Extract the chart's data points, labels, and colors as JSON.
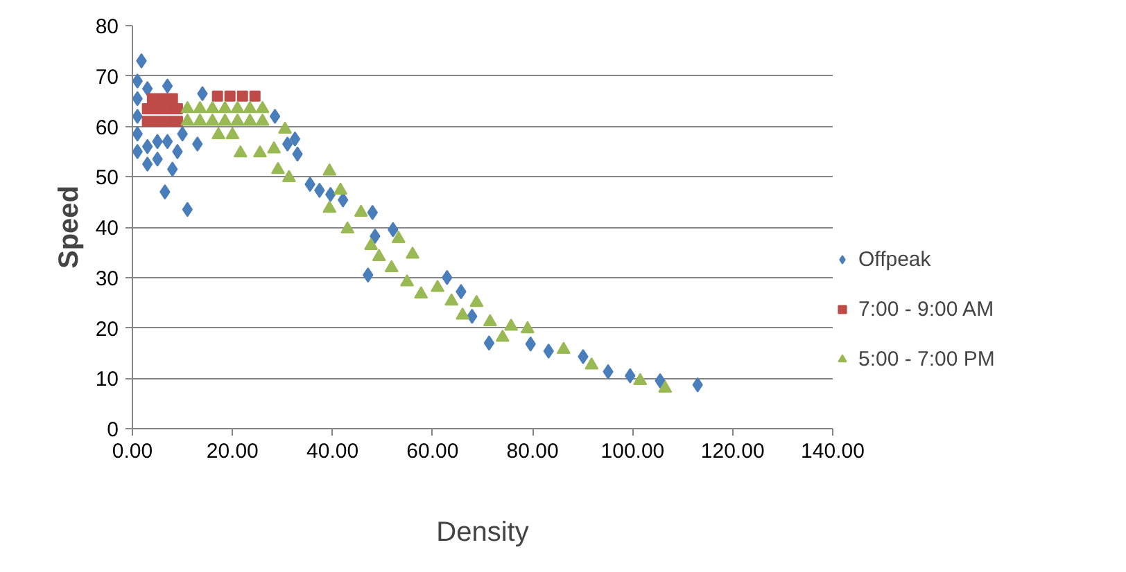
{
  "chart_data": {
    "type": "scatter",
    "xlabel": "Density",
    "ylabel": "Speed",
    "xlim": [
      0,
      140
    ],
    "ylim": [
      0,
      80
    ],
    "xticks": [
      {
        "value": 0,
        "label": "0.00"
      },
      {
        "value": 20,
        "label": "20.00"
      },
      {
        "value": 40,
        "label": "40.00"
      },
      {
        "value": 60,
        "label": "60.00"
      },
      {
        "value": 80,
        "label": "80.00"
      },
      {
        "value": 100,
        "label": "100.00"
      },
      {
        "value": 120,
        "label": "120.00"
      },
      {
        "value": 140,
        "label": "140.00"
      }
    ],
    "yticks": [
      0,
      10,
      20,
      30,
      40,
      50,
      60,
      70,
      80
    ],
    "grid": "y",
    "legend": "right",
    "series": [
      {
        "name": "Offpeak",
        "color": "#4a7ebb",
        "marker": "diamond",
        "x": [
          1.8,
          1,
          1,
          1,
          1,
          1,
          3,
          3,
          3,
          5,
          5,
          7,
          7,
          9,
          8,
          6.5,
          11,
          10,
          13,
          14,
          28.5,
          31,
          33,
          32.5,
          35.5,
          37.4,
          39.6,
          42.1,
          48,
          52.1,
          48.5,
          47.1,
          62.9,
          65.7,
          71.3,
          67.9,
          79.6,
          83.2,
          90.1,
          95.1,
          99.5,
          105.5,
          113
        ],
        "values": [
          73,
          69,
          65.5,
          62,
          58.5,
          55,
          67.5,
          56,
          52.5,
          57,
          53.5,
          68,
          57,
          55,
          51.5,
          47,
          43.5,
          58.5,
          56.5,
          66.5,
          62,
          56.5,
          54.5,
          57.5,
          48.5,
          47.3,
          46.5,
          45.4,
          42.9,
          39.5,
          38.2,
          30.5,
          30,
          27.2,
          17,
          22.3,
          16.8,
          15.4,
          14.3,
          11.3,
          10.5,
          9.5,
          8.7
        ]
      },
      {
        "name": "7:00 - 9:00 AM",
        "color": "#be4b48",
        "marker": "square",
        "x": [
          3,
          5,
          7,
          9,
          3,
          5,
          7,
          9,
          4,
          6,
          8,
          17,
          19.5,
          22,
          24.5
        ],
        "values": [
          61,
          61,
          61,
          61,
          63.5,
          63.5,
          63.5,
          63.5,
          65.5,
          65.5,
          65.5,
          66,
          66,
          66,
          66
        ]
      },
      {
        "name": "5:00 - 7:00 PM",
        "color": "#98b954",
        "marker": "triangle",
        "x": [
          11,
          13.5,
          16,
          18.5,
          21,
          23.5,
          26,
          11,
          13.5,
          16,
          18.5,
          21,
          23.5,
          26,
          17.2,
          20,
          21.6,
          25.5,
          28.3,
          30.5,
          29.1,
          31.3,
          39.4,
          41.6,
          39.4,
          43,
          45.7,
          47.7,
          49.3,
          53.2,
          56,
          51.8,
          54.9,
          57.7,
          61,
          63.8,
          68.8,
          66,
          71.5,
          75.7,
          79,
          74,
          86.2,
          91.8,
          101.5,
          106.5
        ],
        "values": [
          61,
          61,
          61,
          61,
          61,
          61,
          61,
          63.5,
          63.5,
          63.5,
          63.5,
          63.5,
          63.5,
          63.5,
          58.3,
          58.3,
          54.7,
          54.7,
          55.5,
          59.4,
          51.4,
          49.8,
          51.1,
          47.3,
          43.7,
          39.6,
          42.9,
          36.3,
          34.1,
          37.7,
          34.6,
          31.9,
          29.1,
          26.7,
          28,
          25.3,
          25,
          22.5,
          21.2,
          20.3,
          19.8,
          18.1,
          15.7,
          12.6,
          9.5,
          8
        ]
      }
    ]
  }
}
